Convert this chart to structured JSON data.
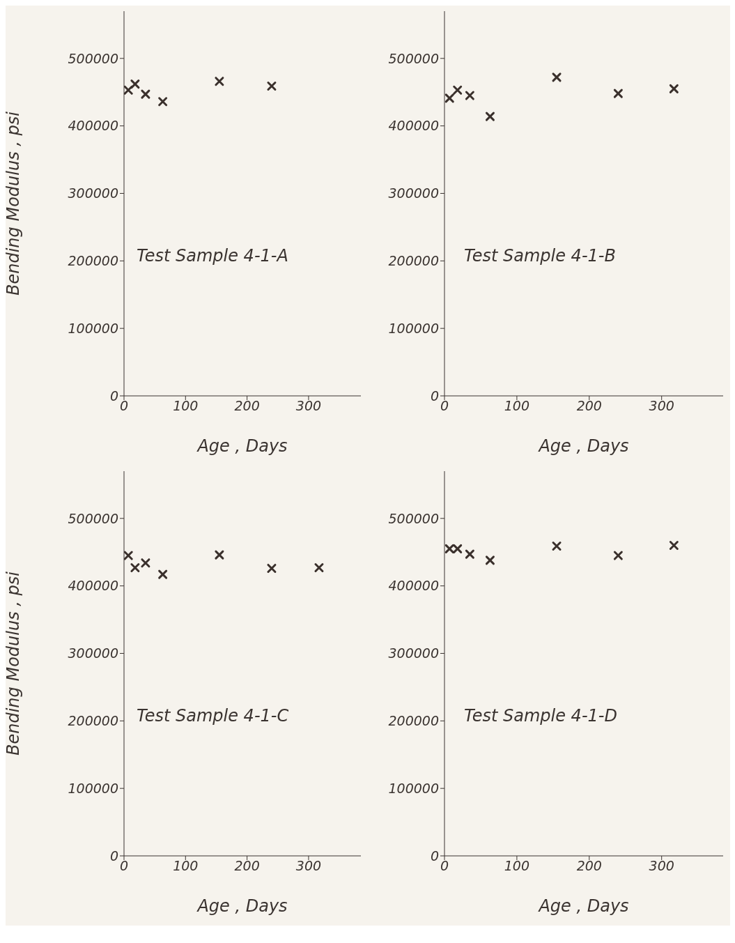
{
  "chart_data": [
    {
      "type": "scatter",
      "xlabel": "Age , Days",
      "ylabel": "Bending  Modulus , psi",
      "annotations": [
        "Test Sample 4-1-A"
      ],
      "marker": "cross",
      "xlim": [
        0,
        385
      ],
      "xticks": [
        0,
        100,
        200,
        300
      ],
      "ylim": [
        0,
        570000
      ],
      "yticks": [
        0,
        100000,
        200000,
        300000,
        400000,
        500000
      ],
      "series": [
        {
          "color": "#3a302c",
          "x": [
            7,
            18,
            35,
            63,
            155,
            240
          ],
          "values": [
            453000,
            462000,
            447000,
            436000,
            466000,
            459000
          ]
        }
      ]
    },
    {
      "type": "scatter",
      "xlabel": "Age , Days",
      "annotations": [
        "Test Sample 4-1-B"
      ],
      "marker": "cross",
      "xlim": [
        0,
        385
      ],
      "xticks": [
        0,
        100,
        200,
        300
      ],
      "ylim": [
        0,
        570000
      ],
      "yticks": [
        0,
        100000,
        200000,
        300000,
        400000,
        500000
      ],
      "series": [
        {
          "color": "#3a302c",
          "x": [
            7,
            18,
            35,
            63,
            155,
            240,
            317
          ],
          "values": [
            441000,
            453000,
            445000,
            414000,
            472000,
            448000,
            455000
          ]
        }
      ]
    },
    {
      "type": "scatter",
      "xlabel": "Age , Days",
      "ylabel": "Bending  Modulus , psi",
      "annotations": [
        "Test Sample 4-1-C"
      ],
      "marker": "cross",
      "xlim": [
        0,
        385
      ],
      "xticks": [
        0,
        100,
        200,
        300
      ],
      "ylim": [
        0,
        570000
      ],
      "yticks": [
        0,
        100000,
        200000,
        300000,
        400000,
        500000
      ],
      "series": [
        {
          "color": "#3a302c",
          "x": [
            7,
            18,
            35,
            63,
            155,
            240,
            317
          ],
          "values": [
            445000,
            427000,
            434000,
            417000,
            446000,
            426000,
            427000
          ]
        }
      ]
    },
    {
      "type": "scatter",
      "xlabel": "Age , Days",
      "annotations": [
        "Test Sample 4-1-D"
      ],
      "marker": "cross",
      "xlim": [
        0,
        385
      ],
      "xticks": [
        0,
        100,
        200,
        300
      ],
      "ylim": [
        0,
        570000
      ],
      "yticks": [
        0,
        100000,
        200000,
        300000,
        400000,
        500000
      ],
      "series": [
        {
          "color": "#3a302c",
          "x": [
            7,
            18,
            35,
            63,
            155,
            240,
            317
          ],
          "values": [
            455000,
            455000,
            447000,
            438000,
            459000,
            445000,
            460000
          ]
        }
      ]
    }
  ]
}
